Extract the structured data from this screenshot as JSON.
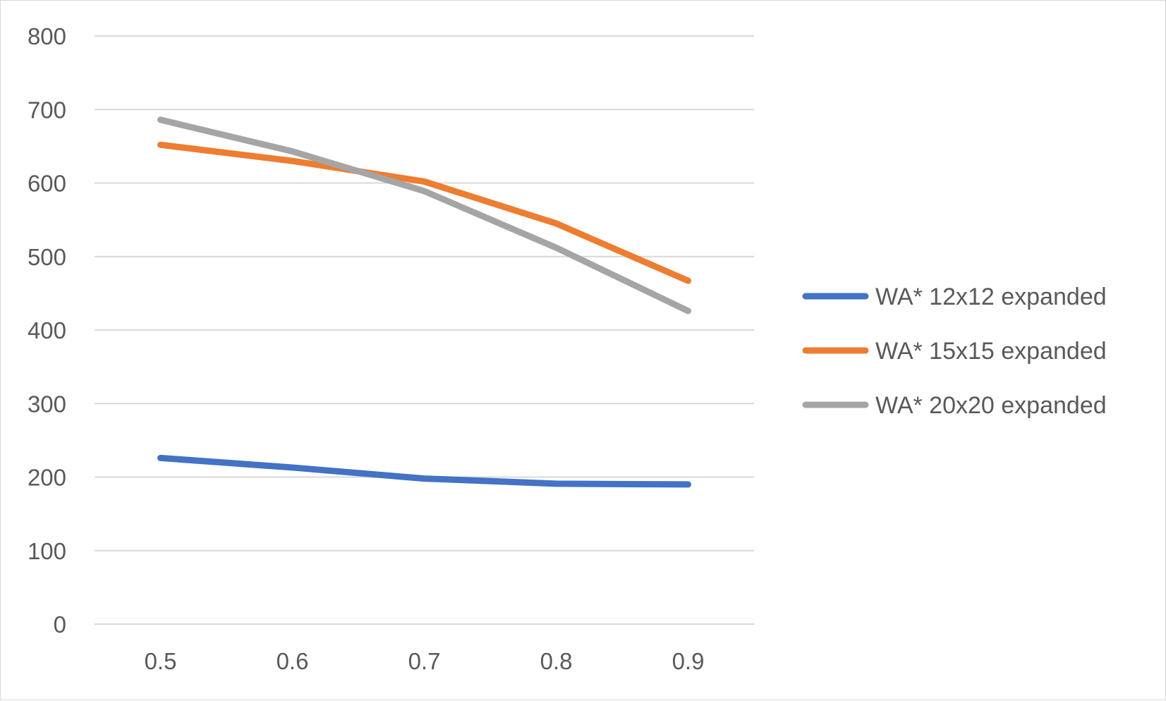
{
  "chart_data": {
    "type": "line",
    "title": "",
    "xlabel": "",
    "ylabel": "",
    "categories": [
      "0.5",
      "0.6",
      "0.7",
      "0.8",
      "0.9"
    ],
    "ylim": [
      0,
      800
    ],
    "y_ticks": [
      "0",
      "100",
      "200",
      "300",
      "400",
      "500",
      "600",
      "700",
      "800"
    ],
    "grid": "horizontal",
    "legend_position": "right",
    "series": [
      {
        "name": "WA* 12x12 expanded",
        "color": "#4472c4",
        "values": [
          226,
          213,
          198,
          191,
          190
        ]
      },
      {
        "name": "WA* 15x15 expanded",
        "color": "#ed7d31",
        "values": [
          652,
          630,
          602,
          545,
          467
        ]
      },
      {
        "name": "WA* 20x20 expanded",
        "color": "#a5a5a5",
        "values": [
          686,
          643,
          589,
          512,
          426
        ]
      }
    ]
  }
}
